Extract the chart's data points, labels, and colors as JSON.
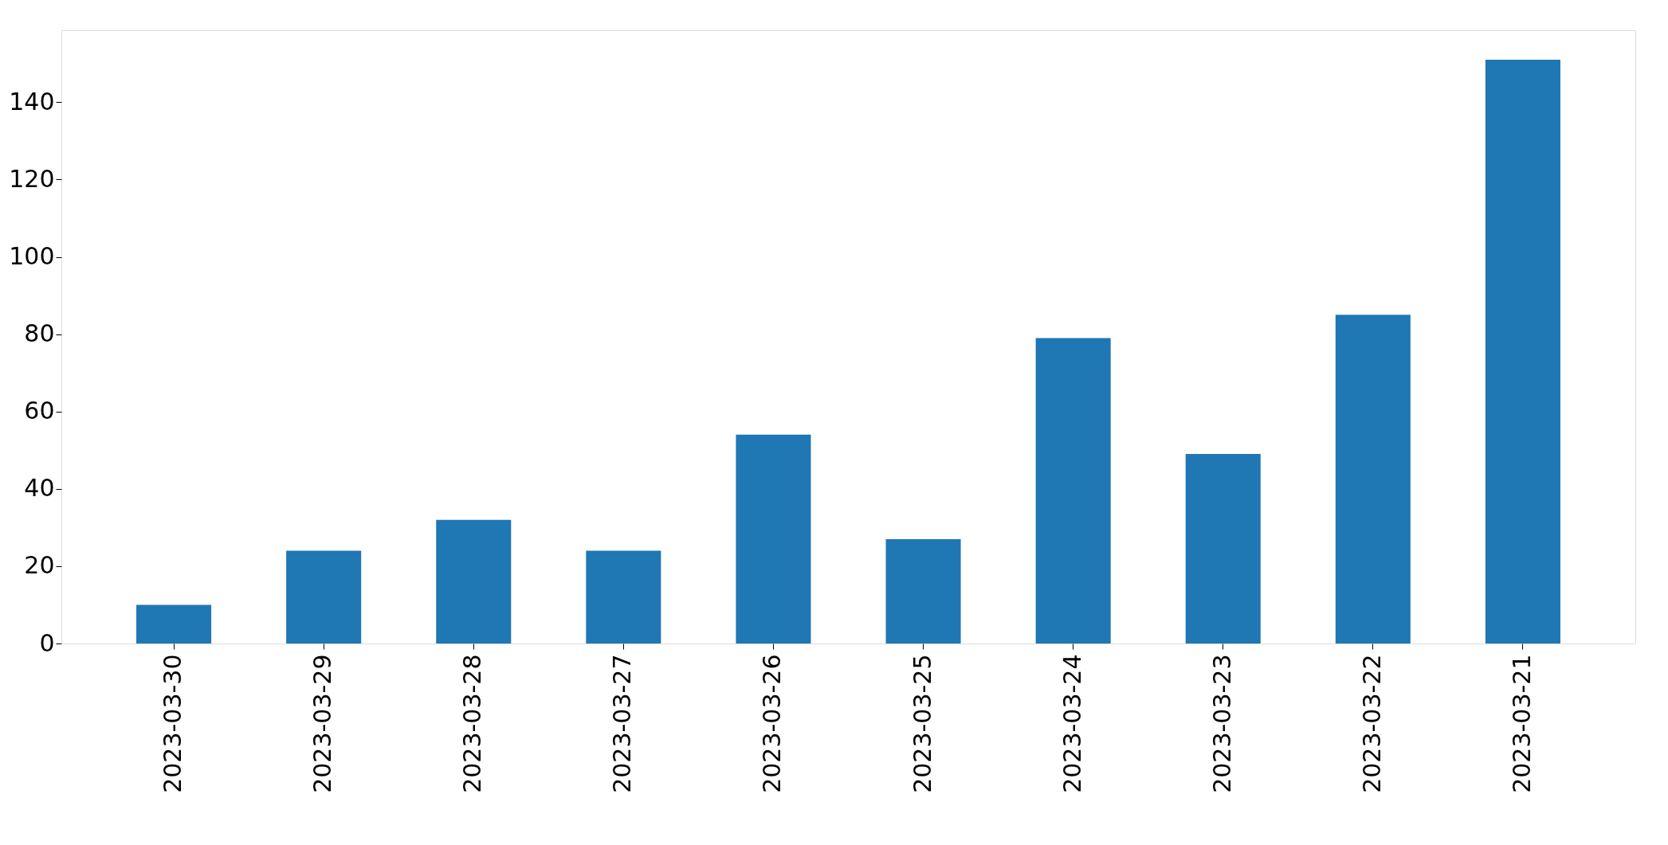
{
  "chart_data": {
    "type": "bar",
    "categories": [
      "2023-03-30",
      "2023-03-29",
      "2023-03-28",
      "2023-03-27",
      "2023-03-26",
      "2023-03-25",
      "2023-03-24",
      "2023-03-23",
      "2023-03-22",
      "2023-03-21"
    ],
    "values": [
      10,
      24,
      32,
      24,
      54,
      27,
      79,
      49,
      85,
      151
    ],
    "color": "#1f77b4",
    "ylim": [
      0,
      158.6
    ],
    "yticks": [
      0,
      20,
      40,
      60,
      80,
      100,
      120,
      140
    ],
    "grid": false
  }
}
